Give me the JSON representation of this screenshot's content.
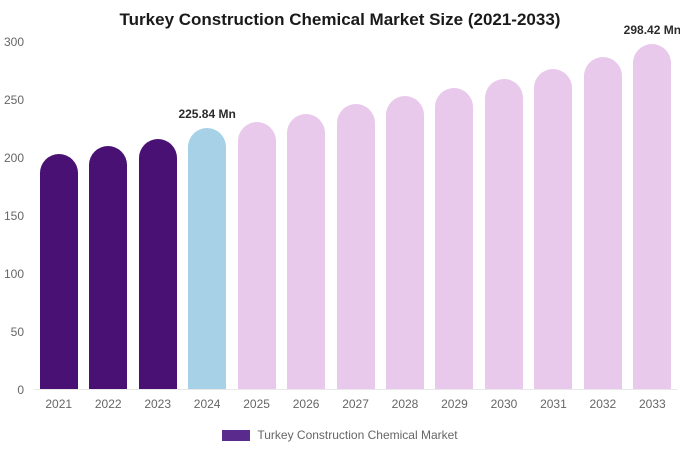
{
  "title": "Turkey Construction Chemical Market Size (2021-2033)",
  "legend": {
    "label": "Turkey Construction Chemical Market",
    "swatch_color": "#5a2a8c"
  },
  "colors": {
    "historical_bar": "#481173",
    "current_bar": "#a6d1e6",
    "forecast_bar": "#e8c9ec",
    "axis_text": "#666666",
    "title_text": "#1a1a1a"
  },
  "chart_data": {
    "type": "bar",
    "title": "Turkey Construction Chemical Market Size (2021-2033)",
    "xlabel": "",
    "ylabel": "",
    "ylim": [
      0,
      300
    ],
    "yticks": [
      0,
      50,
      100,
      150,
      200,
      250,
      300
    ],
    "grid": false,
    "legend_position": "bottom",
    "categories": [
      "2021",
      "2022",
      "2023",
      "2024",
      "2025",
      "2026",
      "2027",
      "2028",
      "2029",
      "2030",
      "2031",
      "2032",
      "2033"
    ],
    "values": [
      203,
      210,
      216,
      225.84,
      231,
      238,
      246,
      253,
      260,
      268,
      277,
      287,
      298.42
    ],
    "bar_colors": [
      "#481173",
      "#481173",
      "#481173",
      "#a6d1e6",
      "#e8c9ec",
      "#e8c9ec",
      "#e8c9ec",
      "#e8c9ec",
      "#e8c9ec",
      "#e8c9ec",
      "#e8c9ec",
      "#e8c9ec",
      "#e8c9ec"
    ],
    "annotations": [
      {
        "category": "2024",
        "text": "225.84 Mn"
      },
      {
        "category": "2033",
        "text": "298.42 Mn"
      }
    ]
  }
}
